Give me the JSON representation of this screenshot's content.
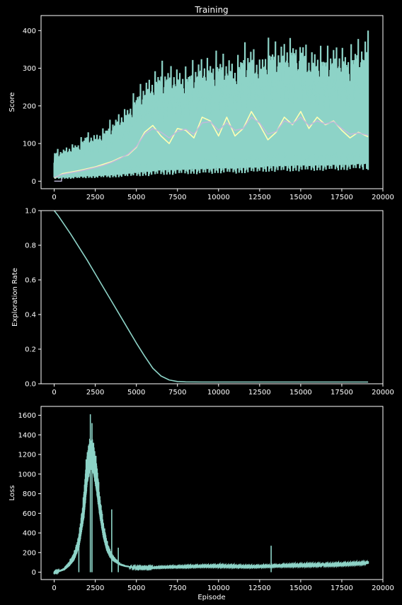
{
  "figure": {
    "title": "Training",
    "xlabel": "Episode"
  },
  "colors": {
    "background": "#000000",
    "axes": "#ffffff",
    "teal": "#8dd3c7",
    "yellow": "#ffffb3",
    "lavender": "#bebada"
  },
  "chart_data": [
    {
      "type": "line",
      "title": "Training",
      "xlabel": "",
      "ylabel": "Score",
      "xlim": [
        -800,
        20000
      ],
      "ylim": [
        -20,
        440
      ],
      "xticks": [
        0,
        2500,
        5000,
        7500,
        10000,
        12500,
        15000,
        17500,
        20000
      ],
      "xtick_labels": [
        "0",
        "2500",
        "5000",
        "7500",
        "10000",
        "12500",
        "15000",
        "17500",
        "20000"
      ],
      "yticks": [
        0,
        100,
        200,
        300,
        400
      ],
      "ytick_labels": [
        "0",
        "100",
        "200",
        "300",
        "400"
      ],
      "grid": false,
      "series": [
        {
          "color": "#8dd3c7",
          "style": "band",
          "x": [
            0,
            500,
            1000,
            1500,
            2000,
            2500,
            3000,
            3500,
            4000,
            4500,
            5000,
            5500,
            6000,
            6500,
            7000,
            7500,
            8000,
            8500,
            9000,
            9500,
            10000,
            10500,
            11000,
            11500,
            12000,
            12500,
            13000,
            13500,
            14000,
            14500,
            15000,
            15500,
            16000,
            16500,
            17000,
            17500,
            18000,
            18500,
            19100
          ],
          "low": [
            5,
            6,
            6,
            7,
            8,
            8,
            9,
            9,
            10,
            11,
            12,
            13,
            14,
            16,
            16,
            17,
            18,
            18,
            18,
            19,
            20,
            20,
            20,
            20,
            21,
            22,
            24,
            25,
            24,
            25,
            26,
            26,
            27,
            27,
            28,
            28,
            29,
            30,
            30
          ],
          "high": [
            85,
            90,
            100,
            110,
            135,
            130,
            145,
            170,
            190,
            210,
            250,
            280,
            295,
            320,
            320,
            315,
            310,
            330,
            345,
            340,
            350,
            350,
            330,
            370,
            380,
            340,
            385,
            380,
            390,
            395,
            410,
            360,
            370,
            360,
            380,
            370,
            360,
            390,
            400
          ]
        },
        {
          "color": "#ffffb3",
          "style": "line",
          "x": [
            0,
            500,
            1000,
            1500,
            2000,
            2500,
            3000,
            3500,
            4000,
            4500,
            5000,
            5500,
            6000,
            6500,
            7000,
            7500,
            8000,
            8500,
            9000,
            9500,
            10000,
            10500,
            11000,
            11500,
            12000,
            12500,
            13000,
            13500,
            14000,
            14500,
            15000,
            15500,
            16000,
            16500,
            17000,
            17500,
            18000,
            18500,
            19100
          ],
          "values": [
            8,
            20,
            24,
            28,
            33,
            38,
            45,
            52,
            62,
            70,
            90,
            130,
            148,
            120,
            100,
            140,
            135,
            115,
            170,
            160,
            120,
            170,
            120,
            140,
            185,
            150,
            110,
            130,
            170,
            150,
            185,
            140,
            170,
            150,
            160,
            135,
            115,
            130,
            118
          ]
        },
        {
          "color": "#bebada",
          "style": "line",
          "x": [
            0,
            500,
            1000,
            1500,
            2000,
            2500,
            3000,
            3500,
            4000,
            4500,
            5000,
            5500,
            6000,
            6500,
            7000,
            7500,
            8000,
            8500,
            9000,
            9500,
            10000,
            10500,
            11000,
            11500,
            12000,
            12500,
            13000,
            13500,
            14000,
            14500,
            15000,
            15500,
            16000,
            16500,
            17000,
            17500,
            18000,
            18500,
            19100
          ],
          "values": [
            10,
            18,
            22,
            26,
            31,
            36,
            42,
            50,
            60,
            72,
            92,
            125,
            140,
            130,
            115,
            132,
            138,
            125,
            155,
            158,
            135,
            155,
            135,
            140,
            170,
            155,
            125,
            132,
            160,
            152,
            170,
            148,
            160,
            152,
            158,
            140,
            125,
            128,
            122
          ]
        },
        {
          "color": "#bebada",
          "style": "step",
          "x": [
            0,
            450,
            450
          ],
          "values": [
            0,
            0,
            8
          ]
        }
      ]
    },
    {
      "type": "line",
      "title": "",
      "xlabel": "",
      "ylabel": "Exploration Rate",
      "xlim": [
        -800,
        20000
      ],
      "ylim": [
        0,
        1.0
      ],
      "xticks": [
        0,
        2500,
        5000,
        7500,
        10000,
        12500,
        15000,
        17500,
        20000
      ],
      "xtick_labels": [
        "0",
        "2500",
        "5000",
        "7500",
        "10000",
        "12500",
        "15000",
        "17500",
        "20000"
      ],
      "yticks": [
        0.0,
        0.2,
        0.4,
        0.6,
        0.8,
        1.0
      ],
      "ytick_labels": [
        "0.0",
        "0.2",
        "0.4",
        "0.6",
        "0.8",
        "1.0"
      ],
      "grid": false,
      "series": [
        {
          "color": "#8dd3c7",
          "style": "line",
          "x": [
            0,
            250,
            500,
            1000,
            1500,
            2000,
            2500,
            3000,
            3500,
            4000,
            4500,
            5000,
            5500,
            6000,
            6500,
            7000,
            7500,
            8000,
            9000,
            10000,
            12500,
            15000,
            17500,
            19100
          ],
          "values": [
            1.0,
            0.97,
            0.935,
            0.865,
            0.79,
            0.715,
            0.635,
            0.555,
            0.475,
            0.395,
            0.315,
            0.235,
            0.16,
            0.09,
            0.045,
            0.022,
            0.013,
            0.011,
            0.01,
            0.01,
            0.01,
            0.01,
            0.01,
            0.01
          ]
        }
      ]
    },
    {
      "type": "line",
      "title": "",
      "xlabel": "Episode",
      "ylabel": "Loss",
      "xlim": [
        -800,
        20000
      ],
      "ylim": [
        -75,
        1690
      ],
      "xticks": [
        0,
        2500,
        5000,
        7500,
        10000,
        12500,
        15000,
        17500,
        20000
      ],
      "xtick_labels": [
        "0",
        "2500",
        "5000",
        "7500",
        "10000",
        "12500",
        "15000",
        "17500",
        "20000"
      ],
      "yticks": [
        0,
        200,
        400,
        600,
        800,
        1000,
        1200,
        1400,
        1600
      ],
      "ytick_labels": [
        "0",
        "200",
        "400",
        "600",
        "800",
        "1000",
        "1200",
        "1400",
        "1600"
      ],
      "grid": false,
      "series": [
        {
          "color": "#8dd3c7",
          "style": "band",
          "x": [
            0,
            300,
            600,
            900,
            1200,
            1500,
            1800,
            2000,
            2200,
            2400,
            2600,
            2800,
            3000,
            3200,
            3400,
            3600,
            3800,
            4000,
            4300,
            4600,
            5000,
            5500,
            6000,
            7000,
            8000,
            9000,
            10000,
            11000,
            12000,
            13000,
            14000,
            15000,
            16000,
            17000,
            18000,
            19100
          ],
          "low": [
            0,
            5,
            20,
            60,
            120,
            250,
            550,
            900,
            1050,
            1000,
            800,
            550,
            350,
            220,
            150,
            110,
            90,
            70,
            55,
            48,
            42,
            40,
            42,
            48,
            50,
            55,
            55,
            52,
            50,
            55,
            60,
            62,
            65,
            68,
            75,
            85
          ],
          "high": [
            5,
            15,
            45,
            110,
            200,
            380,
            800,
            1250,
            1400,
            1350,
            1100,
            750,
            500,
            330,
            230,
            170,
            130,
            95,
            75,
            62,
            55,
            52,
            55,
            62,
            68,
            72,
            76,
            72,
            68,
            72,
            80,
            85,
            88,
            90,
            98,
            110
          ]
        },
        {
          "color": "#8dd3c7",
          "style": "spikes",
          "x": [
            1500,
            2200,
            2300,
            3500,
            3900,
            13200
          ],
          "values": [
            300,
            1610,
            1520,
            640,
            250,
            270
          ]
        }
      ]
    }
  ]
}
